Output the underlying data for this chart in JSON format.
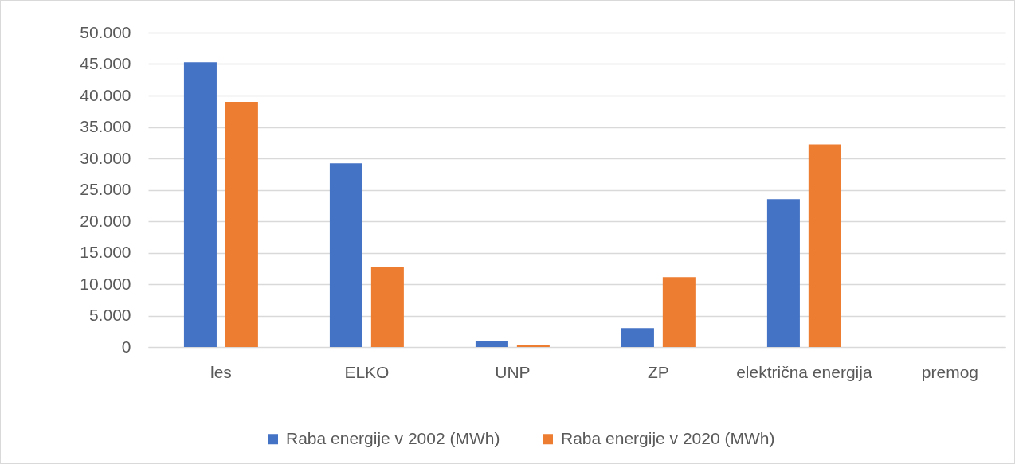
{
  "chart_data": {
    "type": "bar",
    "categories": [
      "les",
      "ELKO",
      "UNP",
      "ZP",
      "električna energija",
      "premog"
    ],
    "series": [
      {
        "name": "Raba energije v 2002 (MWh)",
        "color": "#4472c4",
        "values": [
          45300,
          29200,
          1000,
          3000,
          23500,
          0
        ]
      },
      {
        "name": "Raba energije v 2020 (MWh)",
        "color": "#ed7d31",
        "values": [
          39000,
          12800,
          300,
          11100,
          32200,
          0
        ]
      }
    ],
    "ylim": [
      0,
      50000
    ],
    "yticks": [
      0,
      {
        "value": 5000,
        "label": "5.000"
      },
      {
        "value": 10000,
        "label": "10.000"
      },
      {
        "value": 15000,
        "label": "15.000"
      },
      {
        "value": 20000,
        "label": "20.000"
      },
      {
        "value": 25000,
        "label": "25.000"
      },
      {
        "value": 30000,
        "label": "30.000"
      },
      {
        "value": 35000,
        "label": "35.000"
      },
      {
        "value": 40000,
        "label": "40.000"
      },
      {
        "value": 45000,
        "label": "45.000"
      },
      {
        "value": 50000,
        "label": "50.000"
      }
    ],
    "grid": "y",
    "legend": "bottom"
  }
}
